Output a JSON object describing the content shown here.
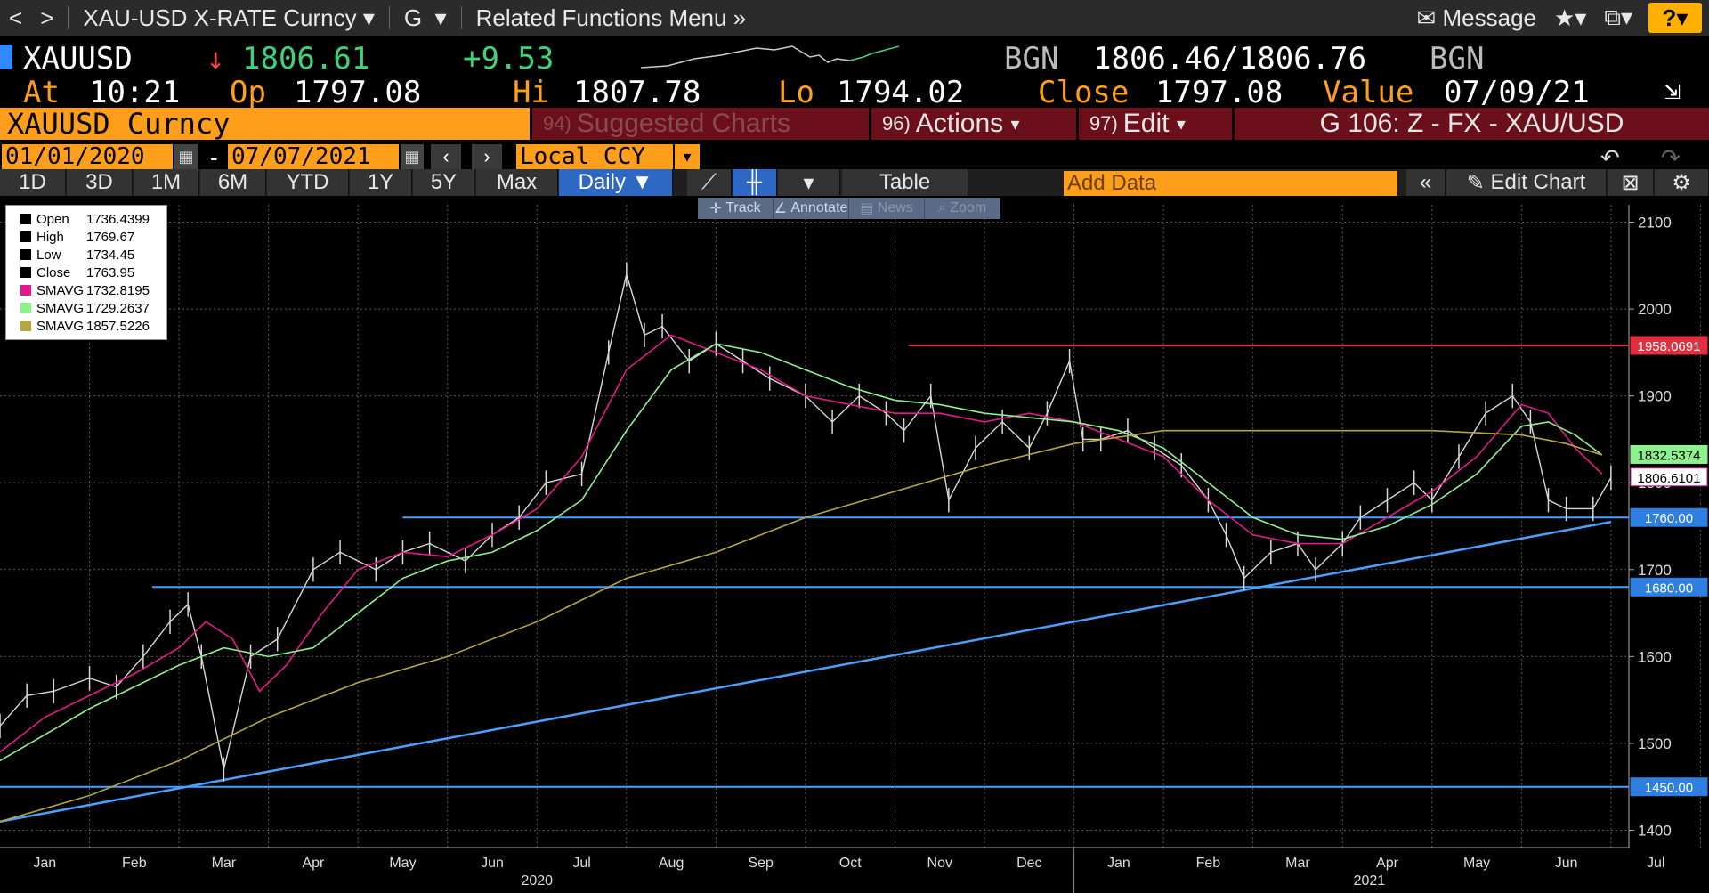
{
  "topbar": {
    "back": "<",
    "forward": ">",
    "security": "XAU-USD X-RATE Curncy",
    "function": "G",
    "related": "Related Functions Menu",
    "message": "Message",
    "help": "?"
  },
  "quote": {
    "ticker": "XAUUSD",
    "last": "1806.61",
    "change": "+9.53",
    "bid_src": "BGN",
    "bid_ask": "1806.46/1806.76",
    "ask_src": "BGN",
    "at_label": "At",
    "at_time": "10:21",
    "op_label": "Op",
    "op": "1797.08",
    "hi_label": "Hi",
    "hi": "1807.78",
    "lo_label": "Lo",
    "lo": "1794.02",
    "close_label": "Close",
    "close": "1797.08",
    "value_label": "Value",
    "value_date": "07/09/21"
  },
  "header": {
    "security": "XAUUSD Curncy",
    "suggested_num": "94)",
    "suggested": "Suggested Charts",
    "actions_num": "96)",
    "actions": "Actions",
    "edit_num": "97)",
    "edit": "Edit",
    "gtitle": "G 106: Z - FX - XAU/USD"
  },
  "dates": {
    "start": "01/01/2020",
    "dash": "-",
    "end": "07/07/2021",
    "ccy": "Local CCY"
  },
  "periods": [
    "1D",
    "3D",
    "1M",
    "6M",
    "YTD",
    "1Y",
    "5Y",
    "Max"
  ],
  "frequency": "Daily",
  "table_label": "Table",
  "add_data": "Add Data",
  "edit_chart": "Edit Chart",
  "tools": [
    "Track",
    "Annotate",
    "News",
    "Zoom"
  ],
  "legend": [
    {
      "label": "Open",
      "value": "1736.4399",
      "color": "#000000"
    },
    {
      "label": "High",
      "value": "1769.67",
      "color": "#000000"
    },
    {
      "label": "Low",
      "value": "1734.45",
      "color": "#000000"
    },
    {
      "label": "Close",
      "value": "1763.95",
      "color": "#000000"
    },
    {
      "label": "SMAVG",
      "value": "1732.8195",
      "color": "#e6198a"
    },
    {
      "label": "SMAVG",
      "value": "1729.2637",
      "color": "#8ff08f"
    },
    {
      "label": "SMAVG",
      "value": "1857.5226",
      "color": "#b4a640"
    }
  ],
  "chart_data": {
    "type": "line",
    "title": "",
    "ylim": [
      1380,
      2120
    ],
    "y_ticks": [
      1400,
      1500,
      1600,
      1700,
      1800,
      1900,
      2000,
      2100
    ],
    "x_months": [
      "Jan",
      "Feb",
      "Mar",
      "Apr",
      "May",
      "Jun",
      "Jul",
      "Aug",
      "Sep",
      "Oct",
      "Nov",
      "Dec",
      "Jan",
      "Feb",
      "Mar",
      "Apr",
      "May",
      "Jun",
      "Jul"
    ],
    "years": [
      "2020",
      "2021"
    ],
    "series": [
      {
        "color": "#d8d8d8",
        "x": [
          0,
          0.3,
          0.6,
          1.0,
          1.3,
          1.6,
          1.9,
          2.1,
          2.25,
          2.5,
          2.8,
          3.1,
          3.5,
          3.8,
          4.2,
          4.5,
          4.8,
          5.2,
          5.5,
          5.8,
          6.1,
          6.5,
          6.8,
          7.0,
          7.2,
          7.4,
          7.7,
          8.0,
          8.3,
          8.6,
          9.0,
          9.3,
          9.6,
          9.9,
          10.1,
          10.4,
          10.6,
          10.9,
          11.2,
          11.5,
          11.7,
          11.95,
          12.1,
          12.3,
          12.6,
          12.9,
          13.2,
          13.5,
          13.7,
          13.9,
          14.2,
          14.5,
          14.7,
          15.0,
          15.2,
          15.5,
          15.8,
          16.0,
          16.3,
          16.6,
          16.9,
          17.1,
          17.3,
          17.5,
          17.8,
          18.0
        ],
        "values": [
          1520,
          1555,
          1560,
          1575,
          1565,
          1600,
          1640,
          1660,
          1600,
          1470,
          1600,
          1620,
          1700,
          1720,
          1700,
          1720,
          1730,
          1710,
          1740,
          1760,
          1800,
          1810,
          1950,
          2040,
          1970,
          1980,
          1940,
          1960,
          1940,
          1920,
          1900,
          1870,
          1900,
          1880,
          1860,
          1900,
          1780,
          1840,
          1870,
          1840,
          1880,
          1940,
          1850,
          1850,
          1860,
          1840,
          1820,
          1780,
          1740,
          1690,
          1720,
          1730,
          1700,
          1730,
          1760,
          1780,
          1800,
          1780,
          1830,
          1880,
          1900,
          1870,
          1780,
          1770,
          1770,
          1806
        ]
      },
      {
        "name": "SMAVG",
        "color": "#e6198a",
        "x": [
          0,
          0.5,
          1.0,
          1.5,
          2.0,
          2.3,
          2.6,
          2.9,
          3.2,
          3.6,
          4.0,
          4.5,
          5.0,
          5.5,
          6.0,
          6.5,
          7.0,
          7.5,
          8.0,
          8.5,
          9.0,
          9.5,
          10.0,
          10.5,
          11.0,
          11.5,
          12.0,
          12.5,
          13.0,
          13.5,
          14.0,
          14.5,
          15.0,
          15.5,
          16.0,
          16.5,
          17.0,
          17.3,
          17.6,
          17.9
        ],
        "values": [
          1490,
          1530,
          1555,
          1580,
          1610,
          1640,
          1620,
          1560,
          1590,
          1650,
          1700,
          1720,
          1715,
          1740,
          1770,
          1830,
          1930,
          1970,
          1950,
          1930,
          1900,
          1890,
          1880,
          1880,
          1870,
          1880,
          1870,
          1850,
          1830,
          1780,
          1740,
          1730,
          1730,
          1760,
          1790,
          1830,
          1890,
          1880,
          1840,
          1810
        ]
      },
      {
        "name": "SMAVG",
        "color": "#8ff08f",
        "x": [
          0,
          0.5,
          1.0,
          1.5,
          2.0,
          2.5,
          3.0,
          3.5,
          4.0,
          4.5,
          5.0,
          5.5,
          6.0,
          6.5,
          7.0,
          7.5,
          8.0,
          8.5,
          9.0,
          9.5,
          10.0,
          10.5,
          11.0,
          11.5,
          12.0,
          12.5,
          13.0,
          13.5,
          14.0,
          14.5,
          15.0,
          15.5,
          16.0,
          16.5,
          17.0,
          17.3,
          17.6,
          17.9
        ],
        "values": [
          1480,
          1510,
          1540,
          1565,
          1590,
          1610,
          1600,
          1610,
          1650,
          1690,
          1710,
          1720,
          1745,
          1780,
          1860,
          1930,
          1960,
          1950,
          1930,
          1910,
          1895,
          1890,
          1880,
          1875,
          1870,
          1860,
          1840,
          1800,
          1760,
          1740,
          1735,
          1750,
          1775,
          1810,
          1865,
          1870,
          1855,
          1832
        ]
      },
      {
        "name": "SMAVG",
        "color": "#b4a640",
        "x": [
          0,
          1.0,
          2.0,
          3.0,
          4.0,
          5.0,
          6.0,
          7.0,
          8.0,
          9.0,
          10.0,
          11.0,
          12.0,
          13.0,
          14.0,
          15.0,
          16.0,
          17.0,
          17.5,
          17.9
        ],
        "values": [
          1410,
          1440,
          1480,
          1530,
          1570,
          1600,
          1640,
          1690,
          1720,
          1760,
          1790,
          1820,
          1845,
          1860,
          1860,
          1860,
          1860,
          1855,
          1845,
          1832
        ]
      }
    ],
    "levels": [
      {
        "value": 1958.0691,
        "label": "1958.0691",
        "color": "#e03040"
      },
      {
        "value": 1832.5374,
        "label": "1832.5374",
        "color": "#8ff08f"
      },
      {
        "value": 1806.6101,
        "label": "1806.6101",
        "color": "#000000"
      },
      {
        "value": 1760.0,
        "label": "1760.00",
        "color": "#4aa0ff"
      },
      {
        "value": 1680.0,
        "label": "1680.00",
        "color": "#4aa0ff"
      },
      {
        "value": 1450.0,
        "label": "1450.00",
        "color": "#4aa0ff"
      }
    ],
    "trendline": {
      "x": [
        0,
        18.0
      ],
      "values": [
        1410,
        1755
      ]
    }
  }
}
